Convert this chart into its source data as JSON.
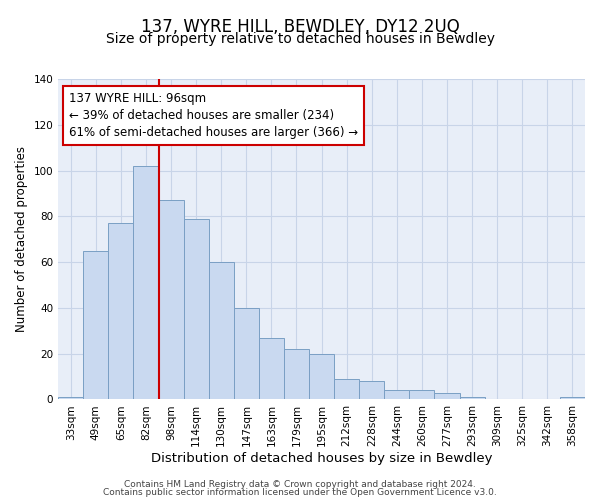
{
  "title": "137, WYRE HILL, BEWDLEY, DY12 2UQ",
  "subtitle": "Size of property relative to detached houses in Bewdley",
  "xlabel": "Distribution of detached houses by size in Bewdley",
  "ylabel": "Number of detached properties",
  "bin_labels": [
    "33sqm",
    "49sqm",
    "65sqm",
    "82sqm",
    "98sqm",
    "114sqm",
    "130sqm",
    "147sqm",
    "163sqm",
    "179sqm",
    "195sqm",
    "212sqm",
    "228sqm",
    "244sqm",
    "260sqm",
    "277sqm",
    "293sqm",
    "309sqm",
    "325sqm",
    "342sqm",
    "358sqm"
  ],
  "bar_values": [
    1,
    65,
    77,
    102,
    87,
    79,
    60,
    40,
    27,
    22,
    20,
    9,
    8,
    4,
    4,
    3,
    1,
    0,
    0,
    0,
    1
  ],
  "bar_color": "#c9d9f0",
  "bar_edge_color": "#7a9fc4",
  "vline_x_idx": 3,
  "vline_color": "#cc0000",
  "annotation_text": "137 WYRE HILL: 96sqm\n← 39% of detached houses are smaller (234)\n61% of semi-detached houses are larger (366) →",
  "annotation_box_color": "#ffffff",
  "annotation_box_edge_color": "#cc0000",
  "ylim": [
    0,
    140
  ],
  "yticks": [
    0,
    20,
    40,
    60,
    80,
    100,
    120,
    140
  ],
  "footer_line1": "Contains HM Land Registry data © Crown copyright and database right 2024.",
  "footer_line2": "Contains public sector information licensed under the Open Government Licence v3.0.",
  "background_color": "#ffffff",
  "plot_bg_color": "#e8eef8",
  "grid_color": "#c8d4e8",
  "title_fontsize": 12,
  "subtitle_fontsize": 10,
  "xlabel_fontsize": 9.5,
  "ylabel_fontsize": 8.5,
  "tick_fontsize": 7.5,
  "annotation_fontsize": 8.5,
  "footer_fontsize": 6.5
}
